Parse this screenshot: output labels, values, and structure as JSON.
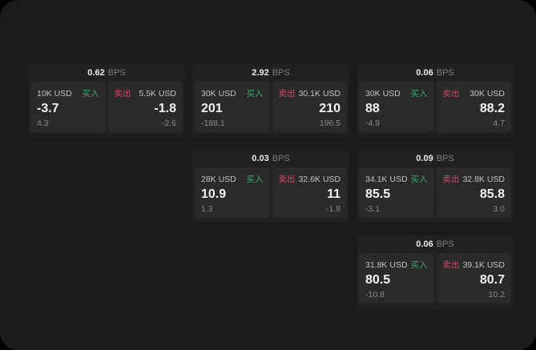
{
  "labels": {
    "bps_unit": "BPS",
    "buy": "买入",
    "sell": "卖出"
  },
  "colors": {
    "background": "#000000",
    "window": "#1b1b1b",
    "card": "#212121",
    "panel": "#2a2a2a",
    "buy_green": "#3fa56d",
    "sell_red": "#cf4967"
  },
  "cards": [
    {
      "bps": "0.62",
      "buy": {
        "size": "10K USD",
        "value": "-3.7",
        "sub": "4.3"
      },
      "sell": {
        "size": "5.5K USD",
        "value": "-1.8",
        "sub": "-2.6"
      }
    },
    {
      "bps": "2.92",
      "buy": {
        "size": "30K USD",
        "value": "201",
        "sub": "-188.1"
      },
      "sell": {
        "size": "30.1K USD",
        "value": "210",
        "sub": "196.5"
      }
    },
    {
      "bps": "0.06",
      "buy": {
        "size": "30K USD",
        "value": "88",
        "sub": "-4.9"
      },
      "sell": {
        "size": "30K USD",
        "value": "88.2",
        "sub": "4.7"
      }
    },
    {
      "bps": "0.03",
      "buy": {
        "size": "28K USD",
        "value": "10.9",
        "sub": "1.3"
      },
      "sell": {
        "size": "32.6K USD",
        "value": "11",
        "sub": "-1.8"
      }
    },
    {
      "bps": "0.09",
      "buy": {
        "size": "34.1K USD",
        "value": "85.5",
        "sub": "-3.1"
      },
      "sell": {
        "size": "32.8K USD",
        "value": "85.8",
        "sub": "3.0"
      }
    },
    {
      "bps": "0.06",
      "buy": {
        "size": "31.8K USD",
        "value": "80.5",
        "sub": "-10.8"
      },
      "sell": {
        "size": "39.1K USD",
        "value": "80.7",
        "sub": "10.2"
      }
    }
  ]
}
